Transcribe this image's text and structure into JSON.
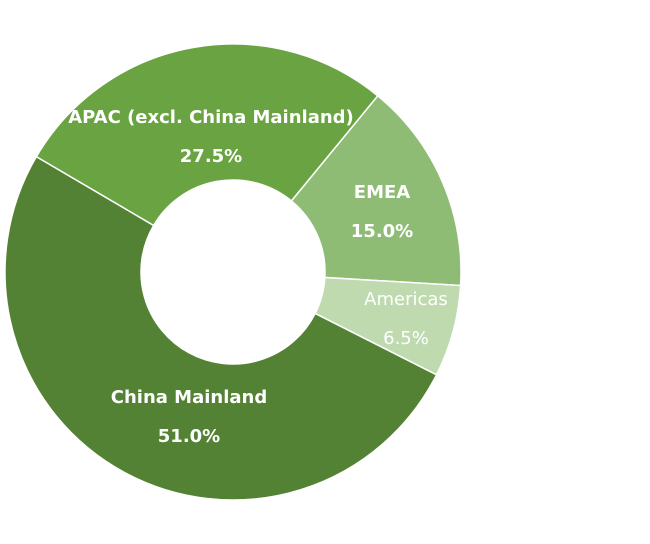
{
  "chart_data": {
    "type": "pie",
    "categories": [
      "EMEA",
      "Americas",
      "China Mainland",
      "APAC (excl. China Mainland)"
    ],
    "values": [
      15.0,
      6.5,
      51.0,
      27.5
    ],
    "value_labels": [
      "15.0%",
      "6.5%",
      "51.0%",
      "27.5%"
    ],
    "colors": [
      "#8fbc75",
      "#c0dab0",
      "#548235",
      "#6aa342"
    ],
    "donut": true
  }
}
